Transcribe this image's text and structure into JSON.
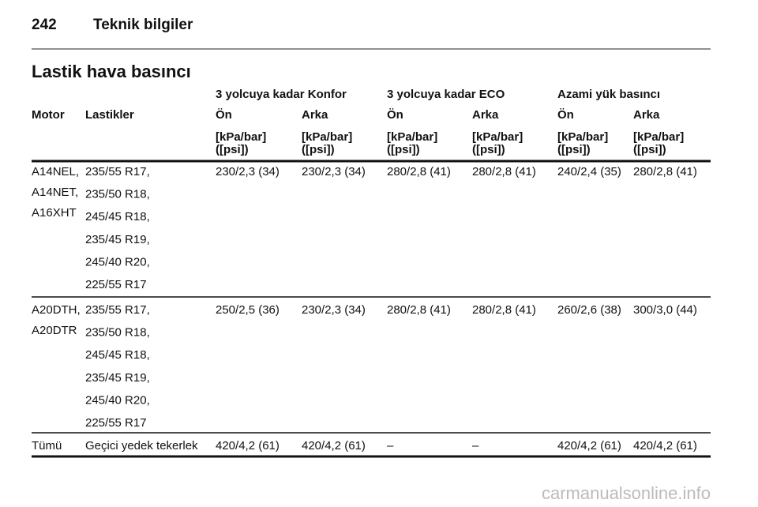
{
  "header": {
    "page_number": "242",
    "title": "Teknik bilgiler"
  },
  "section_title": "Lastik hava basıncı",
  "table": {
    "groups": [
      "3 yolcuya kadar Konfor",
      "3 yolcuya kadar ECO",
      "Azami yük basıncı"
    ],
    "columns": [
      "Motor",
      "Lastikler",
      "Ön",
      "Arka",
      "Ön",
      "Arka",
      "Ön",
      "Arka"
    ],
    "units": [
      [
        "[kPa/bar]",
        "([psi])"
      ],
      [
        "[kPa/bar]",
        "([psi])"
      ],
      [
        "[kPa/bar]",
        "([psi])"
      ],
      [
        "[kPa/bar]",
        "([psi])"
      ],
      [
        "[kPa/bar]",
        "([psi])"
      ],
      [
        "[kPa/bar]",
        "([psi])"
      ]
    ],
    "rows": [
      {
        "motor": [
          "A14NEL,",
          "A14NET,",
          "A16XHT"
        ],
        "tyres": [
          "235/55 R17,",
          "235/50 R18,",
          "245/45 R18,",
          "235/45 R19,",
          "245/40 R20,",
          "225/55 R17"
        ],
        "values": [
          "230/2,3 (34)",
          "230/2,3 (34)",
          "280/2,8 (41)",
          "280/2,8 (41)",
          "240/2,4 (35)",
          "280/2,8 (41)"
        ]
      },
      {
        "motor": [
          "A20DTH,",
          "A20DTR"
        ],
        "tyres": [
          "235/55 R17,",
          "235/50 R18,",
          "245/45 R18,",
          "235/45 R19,",
          "245/40 R20,",
          "225/55 R17"
        ],
        "values": [
          "250/2,5 (36)",
          "230/2,3 (34)",
          "280/2,8 (41)",
          "280/2,8 (41)",
          "260/2,6 (38)",
          "300/3,0 (44)"
        ]
      },
      {
        "motor": [
          "Tümü"
        ],
        "tyres": [
          "Geçici yedek tekerlek"
        ],
        "values": [
          "420/4,2 (61)",
          "420/4,2 (61)",
          "–",
          "–",
          "420/4,2 (61)",
          "420/4,2 (61)"
        ]
      }
    ]
  },
  "watermark": "carmanualsonline.info"
}
